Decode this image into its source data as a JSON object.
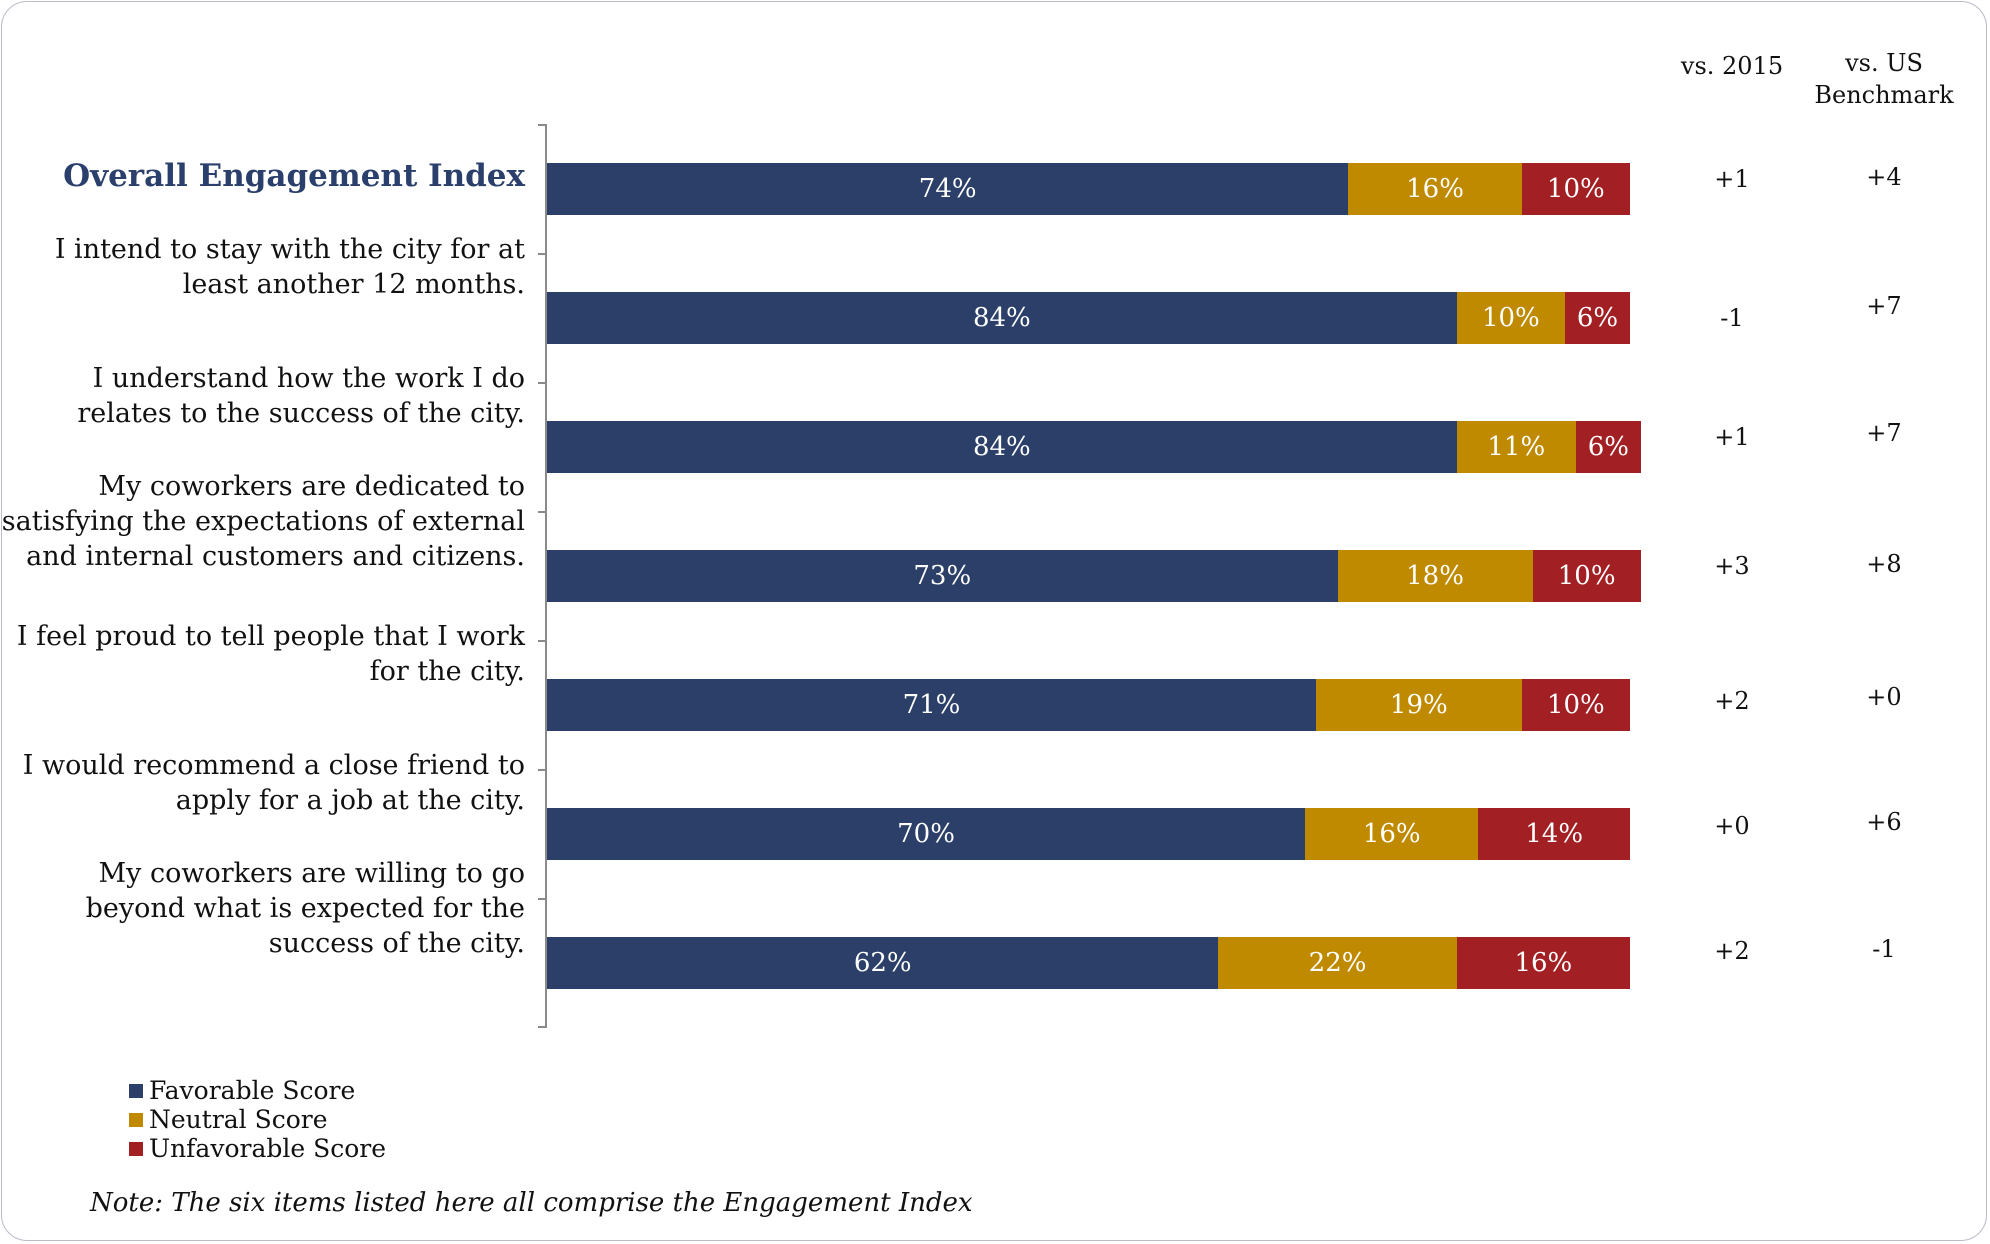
{
  "columns": {
    "vs_2015": "vs. 2015",
    "vs_us_line1": "vs. US",
    "vs_us_line2": "Benchmark"
  },
  "legend": [
    {
      "label": "Favorable Score",
      "color": "#2b3f69"
    },
    {
      "label": "Neutral Score",
      "color": "#bf8a00"
    },
    {
      "label": "Unfavorable Score",
      "color": "#a21f23"
    }
  ],
  "note": "Note: The six items listed here all comprise the Engagement Index",
  "chart_data": {
    "type": "bar",
    "orientation": "horizontal",
    "stacked": true,
    "categories": [
      [
        "Overall Engagement Index"
      ],
      [
        "I intend to stay with the city for at",
        "least another 12 months."
      ],
      [
        "I understand how the work I do",
        "relates to the success of the city."
      ],
      [
        "My coworkers are dedicated to",
        "satisfying the expectations of external",
        "and internal customers and citizens."
      ],
      [
        "I feel proud to tell people that I work",
        "for the city."
      ],
      [
        "I would recommend a close friend to",
        "apply for a job at the city."
      ],
      [
        "My coworkers are willing to go",
        "beyond what is expected for the",
        "success of the city."
      ]
    ],
    "series": [
      {
        "name": "Favorable Score",
        "color": "#2b3f69",
        "values": [
          74,
          84,
          84,
          73,
          71,
          70,
          62
        ],
        "labels": [
          "74%",
          "84%",
          "84%",
          "73%",
          "71%",
          "70%",
          "62%"
        ]
      },
      {
        "name": "Neutral Score",
        "color": "#bf8a00",
        "values": [
          16,
          10,
          11,
          18,
          19,
          16,
          22
        ],
        "labels": [
          "16%",
          "10%",
          "11%",
          "18%",
          "19%",
          "16%",
          "22%"
        ]
      },
      {
        "name": "Unfavorable Score",
        "color": "#a21f23",
        "values": [
          10,
          6,
          6,
          10,
          10,
          14,
          16
        ],
        "labels": [
          "10%",
          "6%",
          "6%",
          "10%",
          "10%",
          "14%",
          "16%"
        ]
      }
    ],
    "vs_2015": [
      "+1",
      "-1",
      "+1",
      "+3",
      "+2",
      "+0",
      "+2"
    ],
    "vs_us_benchmark": [
      "+4",
      "+7",
      "+7",
      "+8",
      "+0",
      "+6",
      "-1"
    ],
    "xlim": [
      0,
      100
    ]
  }
}
